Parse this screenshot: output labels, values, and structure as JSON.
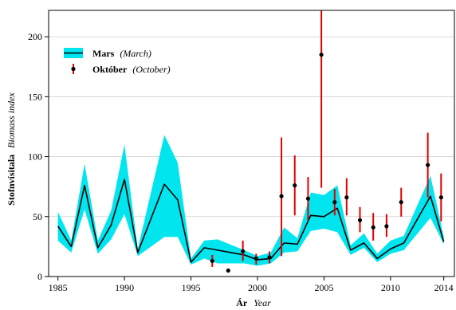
{
  "chart_data": {
    "type": "line",
    "x_label": {
      "main": "Ár",
      "sub": "Year"
    },
    "y_label": {
      "main": "Stofnvísitala",
      "sub": "Biomass index"
    },
    "xlim": [
      1984.3,
      2014.8
    ],
    "ylim": [
      0,
      222
    ],
    "x_ticks": [
      1985,
      1990,
      1995,
      2000,
      2005,
      2010,
      2014
    ],
    "y_ticks": [
      0,
      50,
      100,
      150,
      200
    ],
    "grid": "horizontal",
    "legend_position": "top-left",
    "colors": {
      "band": "#00e5ee",
      "line": "#000000",
      "point": "#000000",
      "errorbar": "#e00000"
    },
    "series": [
      {
        "name": "Mars",
        "name_en": "(March)",
        "style": "line_with_band",
        "points": [
          {
            "x": 1985,
            "y": 42,
            "lo": 30,
            "hi": 54
          },
          {
            "x": 1986,
            "y": 25,
            "lo": 20,
            "hi": 30
          },
          {
            "x": 1987,
            "y": 76,
            "lo": 56,
            "hi": 94
          },
          {
            "x": 1988,
            "y": 24,
            "lo": 19,
            "hi": 30
          },
          {
            "x": 1989,
            "y": 43,
            "lo": 31,
            "hi": 55
          },
          {
            "x": 1990,
            "y": 81,
            "lo": 52,
            "hi": 110
          },
          {
            "x": 1991,
            "y": 20,
            "lo": 17,
            "hi": 23
          },
          {
            "x": 1993,
            "y": 77,
            "lo": 33,
            "hi": 118
          },
          {
            "x": 1994,
            "y": 64,
            "lo": 33,
            "hi": 95
          },
          {
            "x": 1995,
            "y": 12,
            "lo": 10,
            "hi": 15
          },
          {
            "x": 1996,
            "y": 24,
            "lo": 15,
            "hi": 30
          },
          {
            "x": 1997,
            "y": 22,
            "lo": 11,
            "hi": 31
          },
          {
            "x": 1999,
            "y": 18,
            "lo": 11,
            "hi": 22
          },
          {
            "x": 2000,
            "y": 14,
            "lo": 9,
            "hi": 17
          },
          {
            "x": 2001,
            "y": 15,
            "lo": 11,
            "hi": 20
          },
          {
            "x": 2002,
            "y": 28,
            "lo": 20,
            "hi": 41
          },
          {
            "x": 2003,
            "y": 27,
            "lo": 21,
            "hi": 32
          },
          {
            "x": 2004,
            "y": 51,
            "lo": 38,
            "hi": 70
          },
          {
            "x": 2005,
            "y": 50,
            "lo": 40,
            "hi": 68
          },
          {
            "x": 2006,
            "y": 57,
            "lo": 37,
            "hi": 76
          },
          {
            "x": 2007,
            "y": 22,
            "lo": 18,
            "hi": 26
          },
          {
            "x": 2008,
            "y": 28,
            "lo": 24,
            "hi": 36
          },
          {
            "x": 2009,
            "y": 15,
            "lo": 12,
            "hi": 19
          },
          {
            "x": 2010,
            "y": 23,
            "lo": 19,
            "hi": 30
          },
          {
            "x": 2011,
            "y": 28,
            "lo": 22,
            "hi": 34
          },
          {
            "x": 2013,
            "y": 67,
            "lo": 49,
            "hi": 84
          },
          {
            "x": 2014,
            "y": 29,
            "lo": 27,
            "hi": 33
          }
        ]
      },
      {
        "name": "Október",
        "name_en": "(October)",
        "style": "points_with_errorbars",
        "points": [
          {
            "x": 1996.6,
            "y": 13,
            "lo": 8,
            "hi": 18
          },
          {
            "x": 1997.8,
            "y": 5,
            "lo": 5,
            "hi": 5
          },
          {
            "x": 1998.9,
            "y": 21,
            "lo": 13,
            "hi": 30
          },
          {
            "x": 1999.9,
            "y": 15,
            "lo": 10,
            "hi": 19
          },
          {
            "x": 2000.9,
            "y": 16,
            "lo": 11,
            "hi": 21
          },
          {
            "x": 2001.8,
            "y": 67,
            "lo": 17,
            "hi": 116
          },
          {
            "x": 2002.8,
            "y": 76,
            "lo": 51,
            "hi": 101
          },
          {
            "x": 2003.8,
            "y": 65,
            "lo": 47,
            "hi": 83
          },
          {
            "x": 2004.8,
            "y": 185,
            "lo": 74,
            "hi": 235
          },
          {
            "x": 2005.8,
            "y": 62,
            "lo": 51,
            "hi": 73
          },
          {
            "x": 2006.7,
            "y": 66,
            "lo": 51,
            "hi": 82
          },
          {
            "x": 2007.7,
            "y": 47,
            "lo": 37,
            "hi": 58
          },
          {
            "x": 2008.7,
            "y": 41,
            "lo": 30,
            "hi": 53
          },
          {
            "x": 2009.7,
            "y": 42,
            "lo": 33,
            "hi": 52
          },
          {
            "x": 2010.8,
            "y": 62,
            "lo": 50,
            "hi": 74
          },
          {
            "x": 2012.8,
            "y": 93,
            "lo": 66,
            "hi": 120
          },
          {
            "x": 2013.8,
            "y": 66,
            "lo": 46,
            "hi": 86
          }
        ]
      }
    ]
  }
}
